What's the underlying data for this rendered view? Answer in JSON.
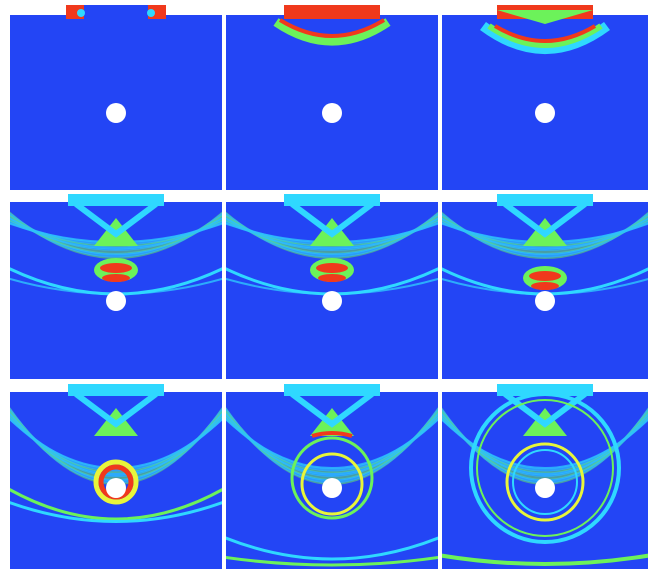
{
  "figure": {
    "rows": 3,
    "columns": 3,
    "colors": {
      "background": "#2345f5",
      "cyan": "#2fd8ff",
      "green": "#6cf25a",
      "yellow": "#e8f53a",
      "red": "#f0391c",
      "hole": "#ffffff"
    },
    "panels": [
      {
        "row": 1,
        "col": 1,
        "stage": "initial-pulse-corners"
      },
      {
        "row": 1,
        "col": 2,
        "stage": "pulse-entering"
      },
      {
        "row": 1,
        "col": 3,
        "stage": "pulse-propagating"
      },
      {
        "row": 2,
        "col": 1,
        "stage": "wave-approaching-hole"
      },
      {
        "row": 2,
        "col": 2,
        "stage": "wave-approaching-hole"
      },
      {
        "row": 2,
        "col": 3,
        "stage": "wave-reaching-hole"
      },
      {
        "row": 3,
        "col": 1,
        "stage": "wave-hitting-hole"
      },
      {
        "row": 3,
        "col": 2,
        "stage": "scattered-rings"
      },
      {
        "row": 3,
        "col": 3,
        "stage": "expanding-scattered-ring"
      }
    ]
  }
}
